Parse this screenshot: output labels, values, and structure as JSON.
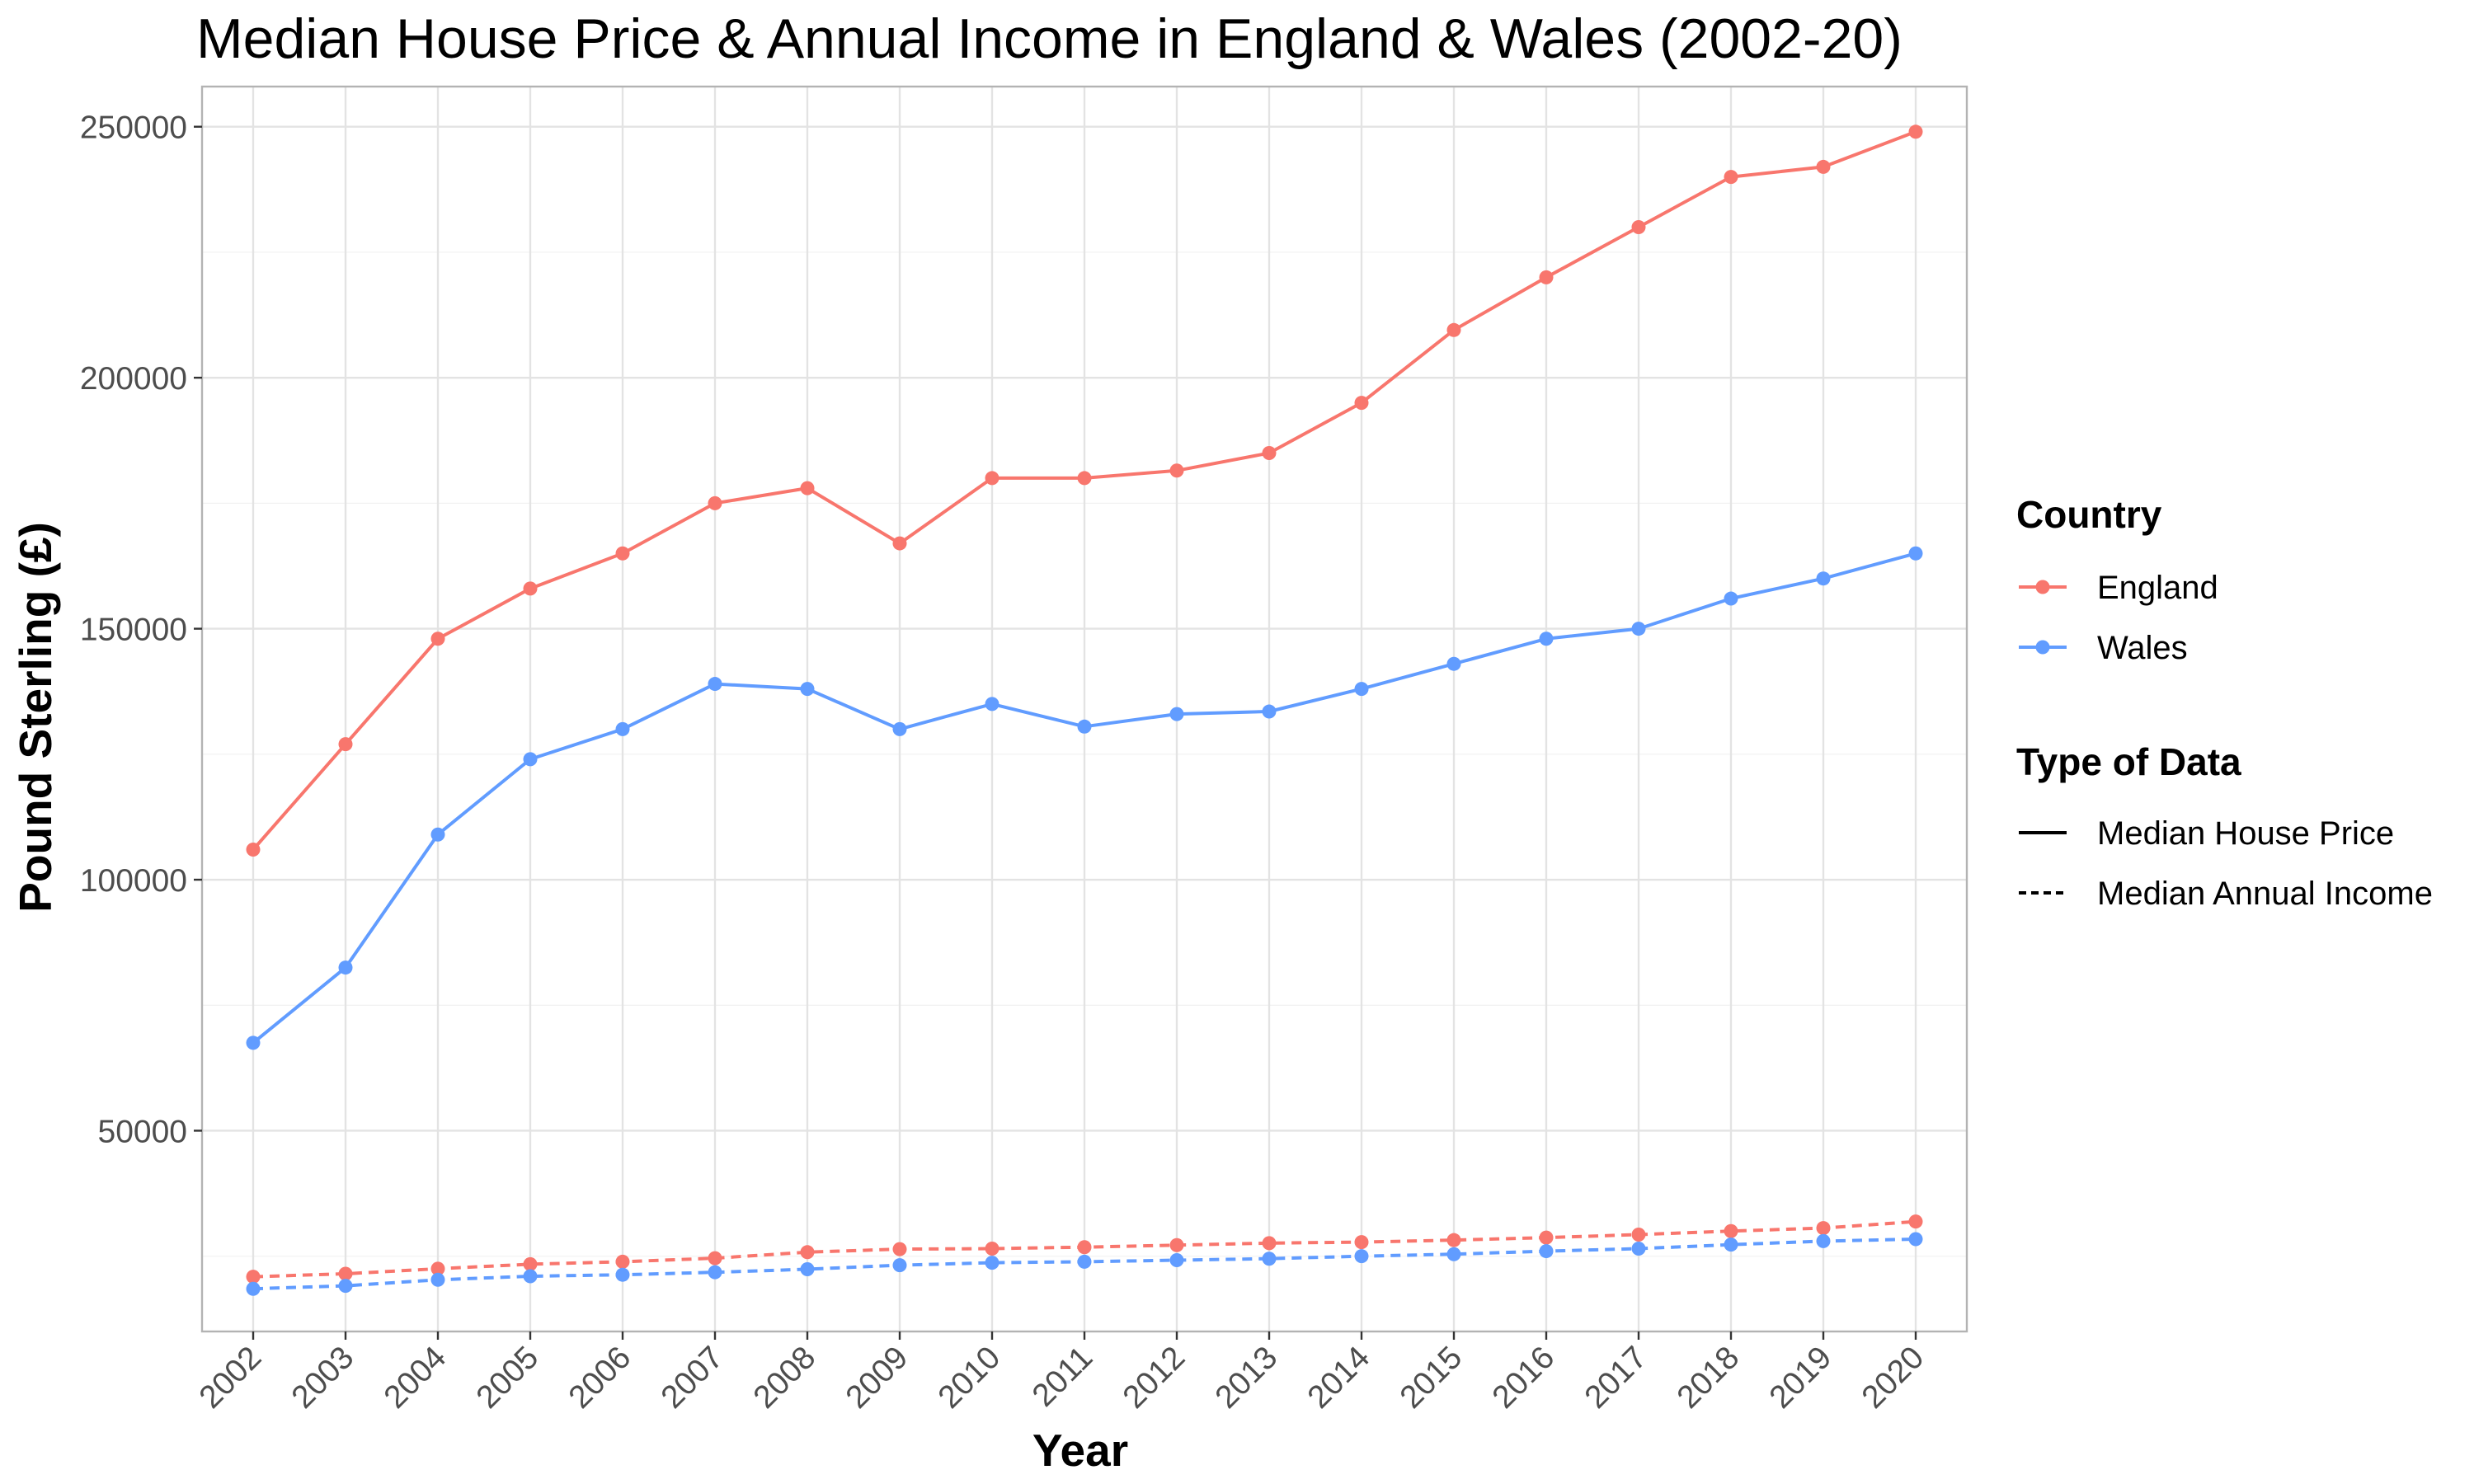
{
  "chart_data": {
    "type": "line",
    "title": "Median House Price & Annual Income in England & Wales (2002-20)",
    "xlabel": "Year",
    "ylabel": "Pound Sterling (£)",
    "x": [
      2002,
      2003,
      2004,
      2005,
      2006,
      2007,
      2008,
      2009,
      2010,
      2011,
      2012,
      2013,
      2014,
      2015,
      2016,
      2017,
      2018,
      2019,
      2020
    ],
    "ylim": [
      10000,
      258000
    ],
    "y_ticks": [
      50000,
      100000,
      150000,
      200000,
      250000
    ],
    "grid": true,
    "legend_position": "right",
    "colors": {
      "England": "#F8766D",
      "Wales": "#619CFF"
    },
    "legend": {
      "country_title": "Country",
      "countries": [
        "England",
        "Wales"
      ],
      "type_title": "Type of Data",
      "types": [
        {
          "label": "Median House Price",
          "linestyle": "solid"
        },
        {
          "label": "Median Annual Income",
          "linestyle": "dashed"
        }
      ]
    },
    "series": [
      {
        "country": "England",
        "type": "Median House Price",
        "values": [
          106000,
          127000,
          148000,
          158000,
          165000,
          175000,
          178000,
          167000,
          180000,
          180000,
          181500,
          185000,
          195000,
          209500,
          220000,
          230000,
          240000,
          242000,
          249000
        ]
      },
      {
        "country": "Wales",
        "type": "Median House Price",
        "values": [
          67500,
          82500,
          109000,
          124000,
          130000,
          139000,
          138000,
          130000,
          135000,
          130500,
          133000,
          133500,
          138000,
          143000,
          148000,
          150000,
          156000,
          160000,
          165000
        ]
      },
      {
        "country": "England",
        "type": "Median Annual Income",
        "values": [
          20900,
          21500,
          22500,
          23400,
          23900,
          24600,
          25800,
          26400,
          26500,
          26800,
          27200,
          27600,
          27800,
          28200,
          28700,
          29300,
          30000,
          30600,
          31900
        ]
      },
      {
        "country": "Wales",
        "type": "Median Annual Income",
        "values": [
          18500,
          19100,
          20300,
          21000,
          21300,
          21800,
          22400,
          23200,
          23700,
          23900,
          24200,
          24500,
          25000,
          25400,
          26000,
          26500,
          27300,
          28000,
          28400
        ]
      }
    ]
  }
}
